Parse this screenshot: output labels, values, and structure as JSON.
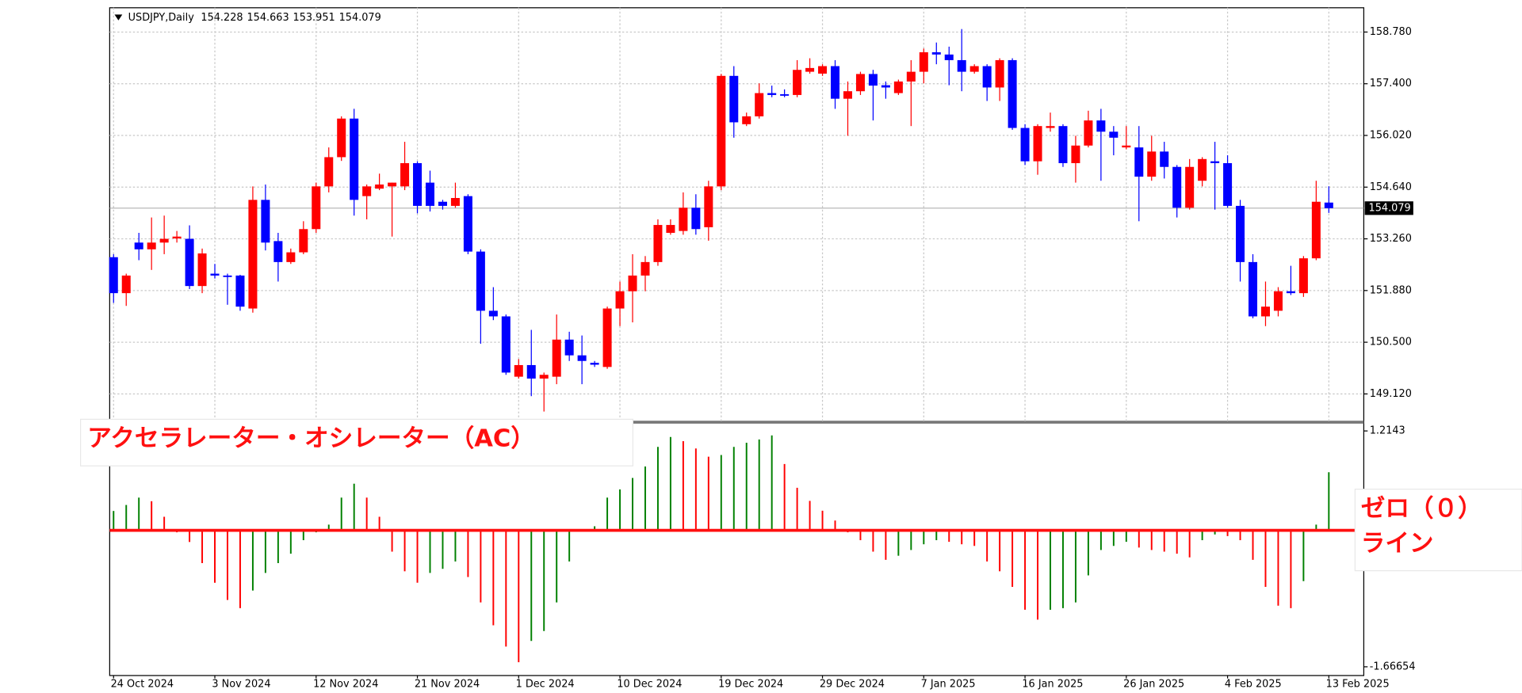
{
  "chart_data": [
    {
      "type": "candlestick",
      "title": "USDJPY,Daily",
      "open": [
        152.77,
        151.81,
        153.16,
        152.98,
        153.16,
        153.27,
        153.26,
        152.0,
        152.33,
        152.28,
        152.28,
        151.4,
        154.3,
        153.2,
        152.64,
        152.9,
        153.52,
        154.66,
        155.44,
        156.47,
        154.4,
        154.6,
        154.66,
        154.66,
        155.28,
        154.76,
        154.25,
        154.14,
        154.4,
        152.92,
        151.34,
        151.19,
        149.58,
        149.89,
        149.53,
        149.58,
        150.57,
        150.15,
        149.95,
        149.84,
        151.4,
        151.86,
        152.28,
        152.64,
        153.42,
        153.47,
        154.09,
        153.57,
        154.66,
        157.61,
        156.32,
        156.53,
        157.15,
        157.12,
        157.1,
        157.72,
        157.67,
        157.87,
        157.0,
        157.2,
        157.66,
        157.36,
        157.15,
        157.46,
        157.72,
        158.24,
        158.18,
        158.03,
        157.72,
        157.87,
        157.3,
        158.03,
        156.22,
        155.33,
        156.22,
        156.27,
        155.28,
        155.75,
        156.42,
        156.12,
        155.7,
        155.7,
        154.92,
        155.59,
        155.18,
        154.09,
        154.81,
        155.33,
        155.28,
        154.14,
        152.64,
        151.19,
        151.34,
        151.86,
        151.81,
        152.74,
        154.228
      ],
      "high": [
        152.85,
        152.33,
        153.42,
        153.83,
        153.88,
        153.47,
        153.62,
        153.0,
        152.59,
        152.33,
        152.3,
        154.66,
        154.71,
        153.42,
        153.0,
        153.73,
        154.76,
        155.7,
        156.53,
        156.73,
        154.71,
        155.0,
        154.76,
        155.85,
        155.33,
        155.08,
        154.3,
        154.76,
        154.45,
        152.98,
        151.97,
        151.24,
        150.05,
        150.83,
        149.69,
        151.24,
        150.78,
        150.68,
        150.0,
        151.45,
        152.12,
        152.85,
        152.8,
        153.78,
        153.78,
        154.5,
        154.45,
        154.81,
        157.66,
        157.87,
        156.63,
        157.41,
        157.35,
        157.25,
        158.03,
        158.08,
        157.92,
        158.03,
        157.46,
        157.72,
        157.77,
        157.46,
        157.51,
        158.03,
        158.34,
        158.5,
        158.39,
        158.86,
        157.92,
        157.92,
        158.08,
        158.08,
        156.32,
        156.32,
        156.63,
        156.32,
        156.01,
        156.68,
        156.73,
        156.27,
        156.27,
        156.27,
        156.01,
        155.85,
        155.23,
        155.39,
        155.44,
        155.85,
        155.49,
        154.3,
        152.85,
        152.12,
        151.97,
        152.54,
        152.8,
        154.81,
        154.663
      ],
      "low": [
        151.55,
        151.47,
        152.69,
        152.43,
        152.85,
        153.16,
        151.92,
        151.81,
        152.2,
        151.5,
        151.34,
        151.29,
        152.95,
        152.12,
        152.59,
        152.85,
        153.42,
        154.5,
        155.34,
        153.88,
        153.78,
        154.56,
        153.32,
        154.56,
        153.94,
        153.99,
        154.04,
        154.09,
        152.85,
        150.46,
        151.09,
        149.63,
        149.53,
        149.06,
        148.65,
        149.38,
        150.0,
        149.38,
        149.84,
        149.79,
        150.93,
        151.03,
        151.86,
        152.54,
        153.37,
        153.37,
        153.37,
        153.21,
        154.56,
        155.96,
        156.27,
        156.47,
        157.04,
        157.04,
        157.04,
        157.67,
        157.61,
        156.73,
        156.01,
        157.1,
        156.42,
        157.0,
        157.1,
        156.27,
        157.41,
        157.92,
        157.36,
        157.2,
        157.67,
        156.94,
        156.94,
        156.17,
        155.23,
        154.97,
        156.12,
        155.18,
        154.76,
        155.7,
        154.81,
        155.49,
        155.65,
        153.73,
        154.81,
        154.87,
        153.83,
        154.04,
        154.66,
        154.04,
        154.09,
        152.12,
        151.14,
        150.93,
        151.19,
        151.76,
        151.71,
        152.69,
        153.951
      ],
      "close": [
        151.81,
        152.28,
        152.98,
        153.16,
        153.26,
        153.32,
        152.0,
        152.87,
        152.28,
        152.26,
        151.45,
        154.3,
        153.16,
        152.64,
        152.9,
        153.52,
        154.66,
        155.44,
        156.47,
        154.3,
        154.66,
        154.71,
        154.76,
        155.28,
        154.14,
        154.14,
        154.14,
        154.35,
        152.92,
        151.34,
        151.19,
        149.69,
        149.89,
        149.53,
        149.63,
        150.57,
        150.15,
        150.0,
        149.9,
        151.4,
        151.86,
        152.28,
        152.64,
        153.63,
        153.63,
        154.09,
        153.52,
        154.66,
        157.61,
        156.37,
        156.53,
        157.15,
        157.1,
        157.08,
        157.77,
        157.82,
        157.87,
        157.0,
        157.2,
        157.66,
        157.35,
        157.3,
        157.46,
        157.72,
        158.24,
        158.18,
        158.03,
        157.72,
        157.87,
        157.3,
        158.03,
        156.22,
        155.33,
        156.27,
        156.27,
        155.28,
        155.75,
        156.42,
        156.12,
        155.96,
        155.75,
        154.92,
        155.59,
        155.18,
        154.09,
        155.18,
        155.39,
        155.28,
        154.14,
        152.64,
        151.19,
        151.45,
        151.86,
        151.81,
        152.74,
        154.25,
        154.079
      ],
      "up_color": "#ff0000",
      "down_color": "#0000ff",
      "ylim": [
        148.391,
        159.428
      ],
      "yticks": [
        {
          "value": 158.78,
          "label": "158.780"
        },
        {
          "value": 157.4,
          "label": "157.400"
        },
        {
          "value": 156.02,
          "label": "156.020"
        },
        {
          "value": 154.64,
          "label": "154.640"
        },
        {
          "value": 153.26,
          "label": "153.260"
        },
        {
          "value": 151.88,
          "label": "151.880"
        },
        {
          "value": 150.5,
          "label": "150.500"
        },
        {
          "value": 149.12,
          "label": "149.120"
        }
      ],
      "grid": true,
      "last_price_line": true
    },
    {
      "type": "bar",
      "title": "アクセラレーター・オシレーター（AC）",
      "categories": [
        "24 Oct 2024",
        null,
        null,
        null,
        null,
        null,
        null,
        null,
        "3 Nov 2024",
        null,
        null,
        null,
        null,
        null,
        null,
        null,
        "12 Nov 2024",
        null,
        null,
        null,
        null,
        null,
        null,
        null,
        "21 Nov 2024",
        null,
        null,
        null,
        null,
        null,
        null,
        null,
        "1 Dec 2024",
        null,
        null,
        null,
        null,
        null,
        null,
        null,
        "10 Dec 2024",
        null,
        null,
        null,
        null,
        null,
        null,
        null,
        "19 Dec 2024",
        null,
        null,
        null,
        null,
        null,
        null,
        null,
        "29 Dec 2024",
        null,
        null,
        null,
        null,
        null,
        null,
        null,
        "7 Jan 2025",
        null,
        null,
        null,
        null,
        null,
        null,
        null,
        "16 Jan 2025",
        null,
        null,
        null,
        null,
        null,
        null,
        null,
        "26 Jan 2025",
        null,
        null,
        null,
        null,
        null,
        null,
        null,
        "4 Feb 2025",
        null,
        null,
        null,
        null,
        null,
        null,
        null,
        "13 Feb 2025"
      ],
      "values": [
        0.237,
        0.31,
        0.4,
        0.356,
        0.166,
        -0.024,
        -0.142,
        -0.4,
        -0.64,
        -0.85,
        -0.95,
        -0.735,
        -0.52,
        -0.4,
        -0.285,
        -0.12,
        -0.024,
        0.07,
        0.4,
        0.57,
        0.4,
        0.166,
        -0.26,
        -0.5,
        -0.64,
        -0.52,
        -0.47,
        -0.38,
        -0.57,
        -0.88,
        -1.16,
        -1.42,
        -1.61,
        -1.35,
        -1.23,
        -0.88,
        -0.38,
        0.01,
        0.05,
        0.4,
        0.5,
        0.64,
        0.78,
        1.02,
        1.14,
        1.09,
        1.0,
        0.9,
        0.92,
        1.02,
        1.07,
        1.11,
        1.16,
        0.81,
        0.52,
        0.36,
        0.24,
        0.12,
        -0.024,
        -0.12,
        -0.26,
        -0.36,
        -0.31,
        -0.24,
        -0.17,
        -0.12,
        -0.14,
        -0.17,
        -0.19,
        -0.38,
        -0.5,
        -0.69,
        -0.97,
        -1.09,
        -0.97,
        -0.95,
        -0.88,
        -0.55,
        -0.24,
        -0.19,
        -0.14,
        -0.21,
        -0.24,
        -0.26,
        -0.285,
        -0.33,
        -0.12,
        -0.05,
        -0.07,
        -0.12,
        -0.36,
        -0.69,
        -0.92,
        -0.95,
        -0.62,
        0.07,
        0.71
      ],
      "up_color": "#008000",
      "down_color": "#ff0000",
      "ylim": [
        -1.66654,
        1.2143
      ],
      "yticks": [
        1.2143,
        -1.66654
      ],
      "zero_line_color": "#ff1010",
      "annotation_lines": [
        "ゼロ（０）",
        "ライン"
      ]
    }
  ]
}
